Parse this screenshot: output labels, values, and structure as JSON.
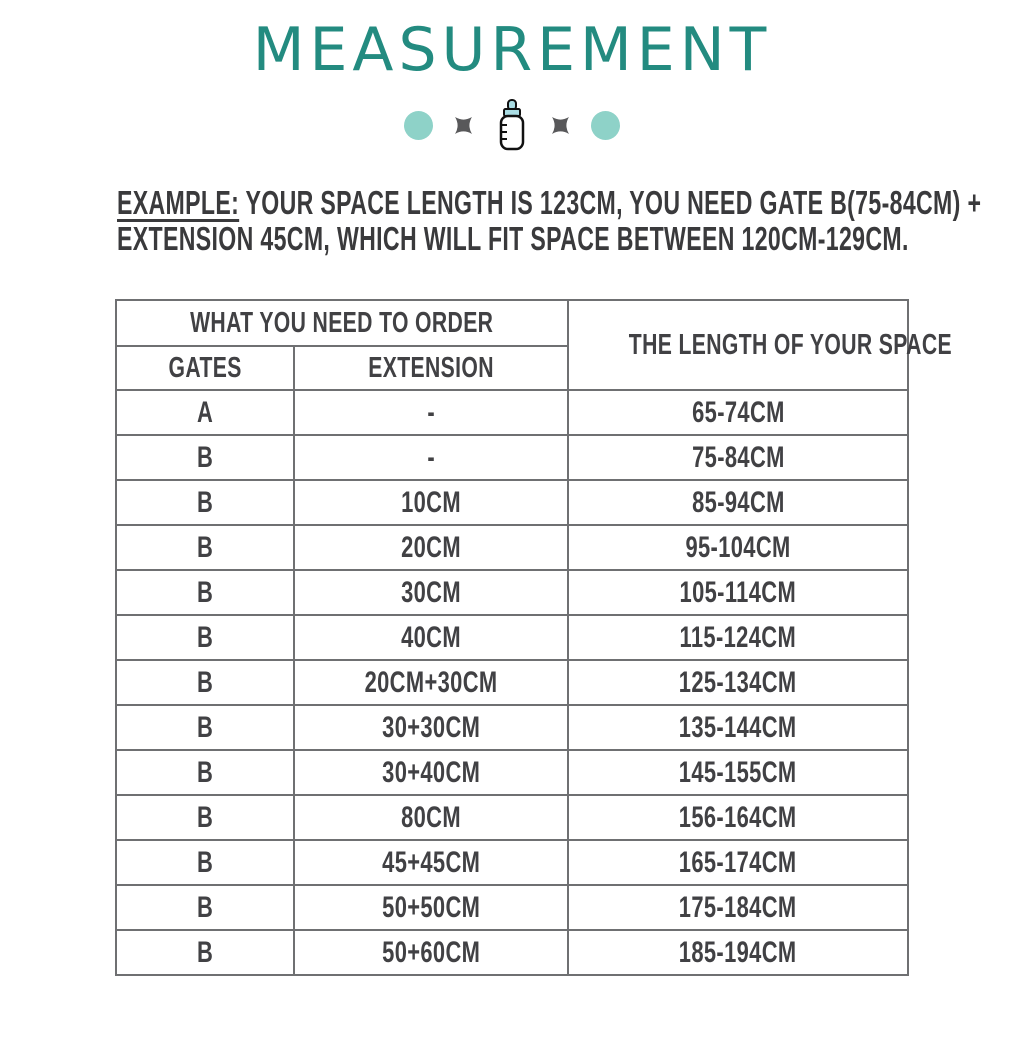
{
  "page": {
    "title": "MEASUREMENT",
    "example": {
      "label": "EXAMPLE:",
      "line1_rest": " YOUR SPACE LENGTH IS 123CM, YOU NEED GATE B(75-84CM) +",
      "line2": "EXTENSION 45CM, WHICH WILL FIT SPACE BETWEEN 120CM-129CM."
    }
  },
  "decoration": {
    "icons": [
      "teal-dot",
      "four-point-star",
      "baby-bottle",
      "four-point-star",
      "teal-dot"
    ],
    "dot_color": "#8ed2c8",
    "star_color": "#58585a",
    "bottle_accent_color": "#aadde4"
  },
  "colors": {
    "title_teal": "#238b80",
    "body_text": "#3a3a3c",
    "table_text": "#414144",
    "table_border": "#6f7072",
    "background": "#ffffff"
  },
  "table": {
    "header": {
      "order_group": "WHAT YOU NEED TO ORDER",
      "gates": "GATES",
      "extension": "EXTENSION",
      "length": "THE LENGTH OF YOUR SPACE"
    },
    "rows": [
      {
        "gate": "A",
        "extension": "-",
        "length": "65-74CM"
      },
      {
        "gate": "B",
        "extension": "-",
        "length": "75-84CM"
      },
      {
        "gate": "B",
        "extension": "10CM",
        "length": "85-94CM"
      },
      {
        "gate": "B",
        "extension": "20CM",
        "length": "95-104CM"
      },
      {
        "gate": "B",
        "extension": "30CM",
        "length": "105-114CM"
      },
      {
        "gate": "B",
        "extension": "40CM",
        "length": "115-124CM"
      },
      {
        "gate": "B",
        "extension": "20CM+30CM",
        "length": "125-134CM"
      },
      {
        "gate": "B",
        "extension": "30+30CM",
        "length": "135-144CM"
      },
      {
        "gate": "B",
        "extension": "30+40CM",
        "length": "145-155CM"
      },
      {
        "gate": "B",
        "extension": "80CM",
        "length": "156-164CM"
      },
      {
        "gate": "B",
        "extension": "45+45CM",
        "length": "165-174CM"
      },
      {
        "gate": "B",
        "extension": "50+50CM",
        "length": "175-184CM"
      },
      {
        "gate": "B",
        "extension": "50+60CM",
        "length": "185-194CM"
      }
    ]
  }
}
